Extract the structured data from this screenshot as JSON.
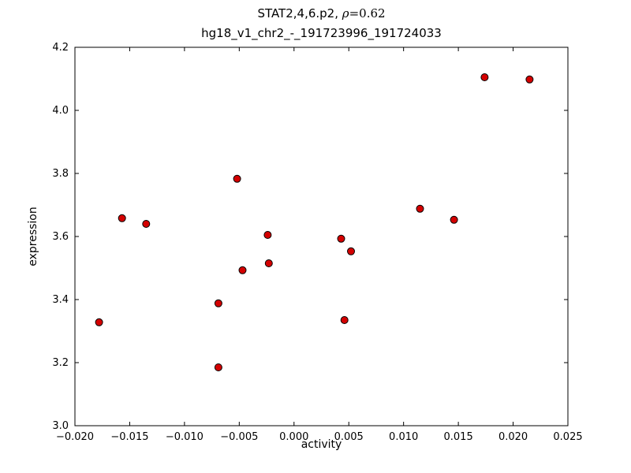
{
  "chart_data": {
    "type": "scatter",
    "title_prefix": "STAT2,4,6.p2, ",
    "title_rho": "ρ",
    "title_math_rest": "=0.62",
    "subtitle": "hg18_v1_chr2_-_191723996_191724033",
    "xlabel": "activity",
    "ylabel": "expression",
    "xlim": [
      -0.02,
      0.025
    ],
    "ylim": [
      3.0,
      4.2
    ],
    "grid": false,
    "marker_color": "#d40000",
    "marker_edge_color": "#000000",
    "xticks": [
      {
        "value": -0.02,
        "label": "−0.020"
      },
      {
        "value": -0.015,
        "label": "−0.015"
      },
      {
        "value": -0.01,
        "label": "−0.010"
      },
      {
        "value": -0.005,
        "label": "−0.005"
      },
      {
        "value": 0.0,
        "label": "0.000"
      },
      {
        "value": 0.005,
        "label": "0.005"
      },
      {
        "value": 0.01,
        "label": "0.010"
      },
      {
        "value": 0.015,
        "label": "0.015"
      },
      {
        "value": 0.02,
        "label": "0.020"
      },
      {
        "value": 0.025,
        "label": "0.025"
      }
    ],
    "yticks": [
      {
        "value": 3.0,
        "label": "3.0"
      },
      {
        "value": 3.2,
        "label": "3.2"
      },
      {
        "value": 3.4,
        "label": "3.4"
      },
      {
        "value": 3.6,
        "label": "3.6"
      },
      {
        "value": 3.8,
        "label": "3.8"
      },
      {
        "value": 4.0,
        "label": "4.0"
      },
      {
        "value": 4.2,
        "label": "4.2"
      }
    ],
    "points": [
      [
        -0.0178,
        3.328
      ],
      [
        -0.0157,
        3.658
      ],
      [
        -0.0135,
        3.64
      ],
      [
        -0.0069,
        3.388
      ],
      [
        -0.0069,
        3.185
      ],
      [
        -0.0052,
        3.783
      ],
      [
        -0.0047,
        3.493
      ],
      [
        -0.0024,
        3.605
      ],
      [
        -0.0023,
        3.515
      ],
      [
        0.0043,
        3.593
      ],
      [
        0.0046,
        3.335
      ],
      [
        0.0052,
        3.553
      ],
      [
        0.0115,
        3.688
      ],
      [
        0.0146,
        3.653
      ],
      [
        0.0174,
        4.105
      ],
      [
        0.0215,
        4.098
      ]
    ]
  }
}
